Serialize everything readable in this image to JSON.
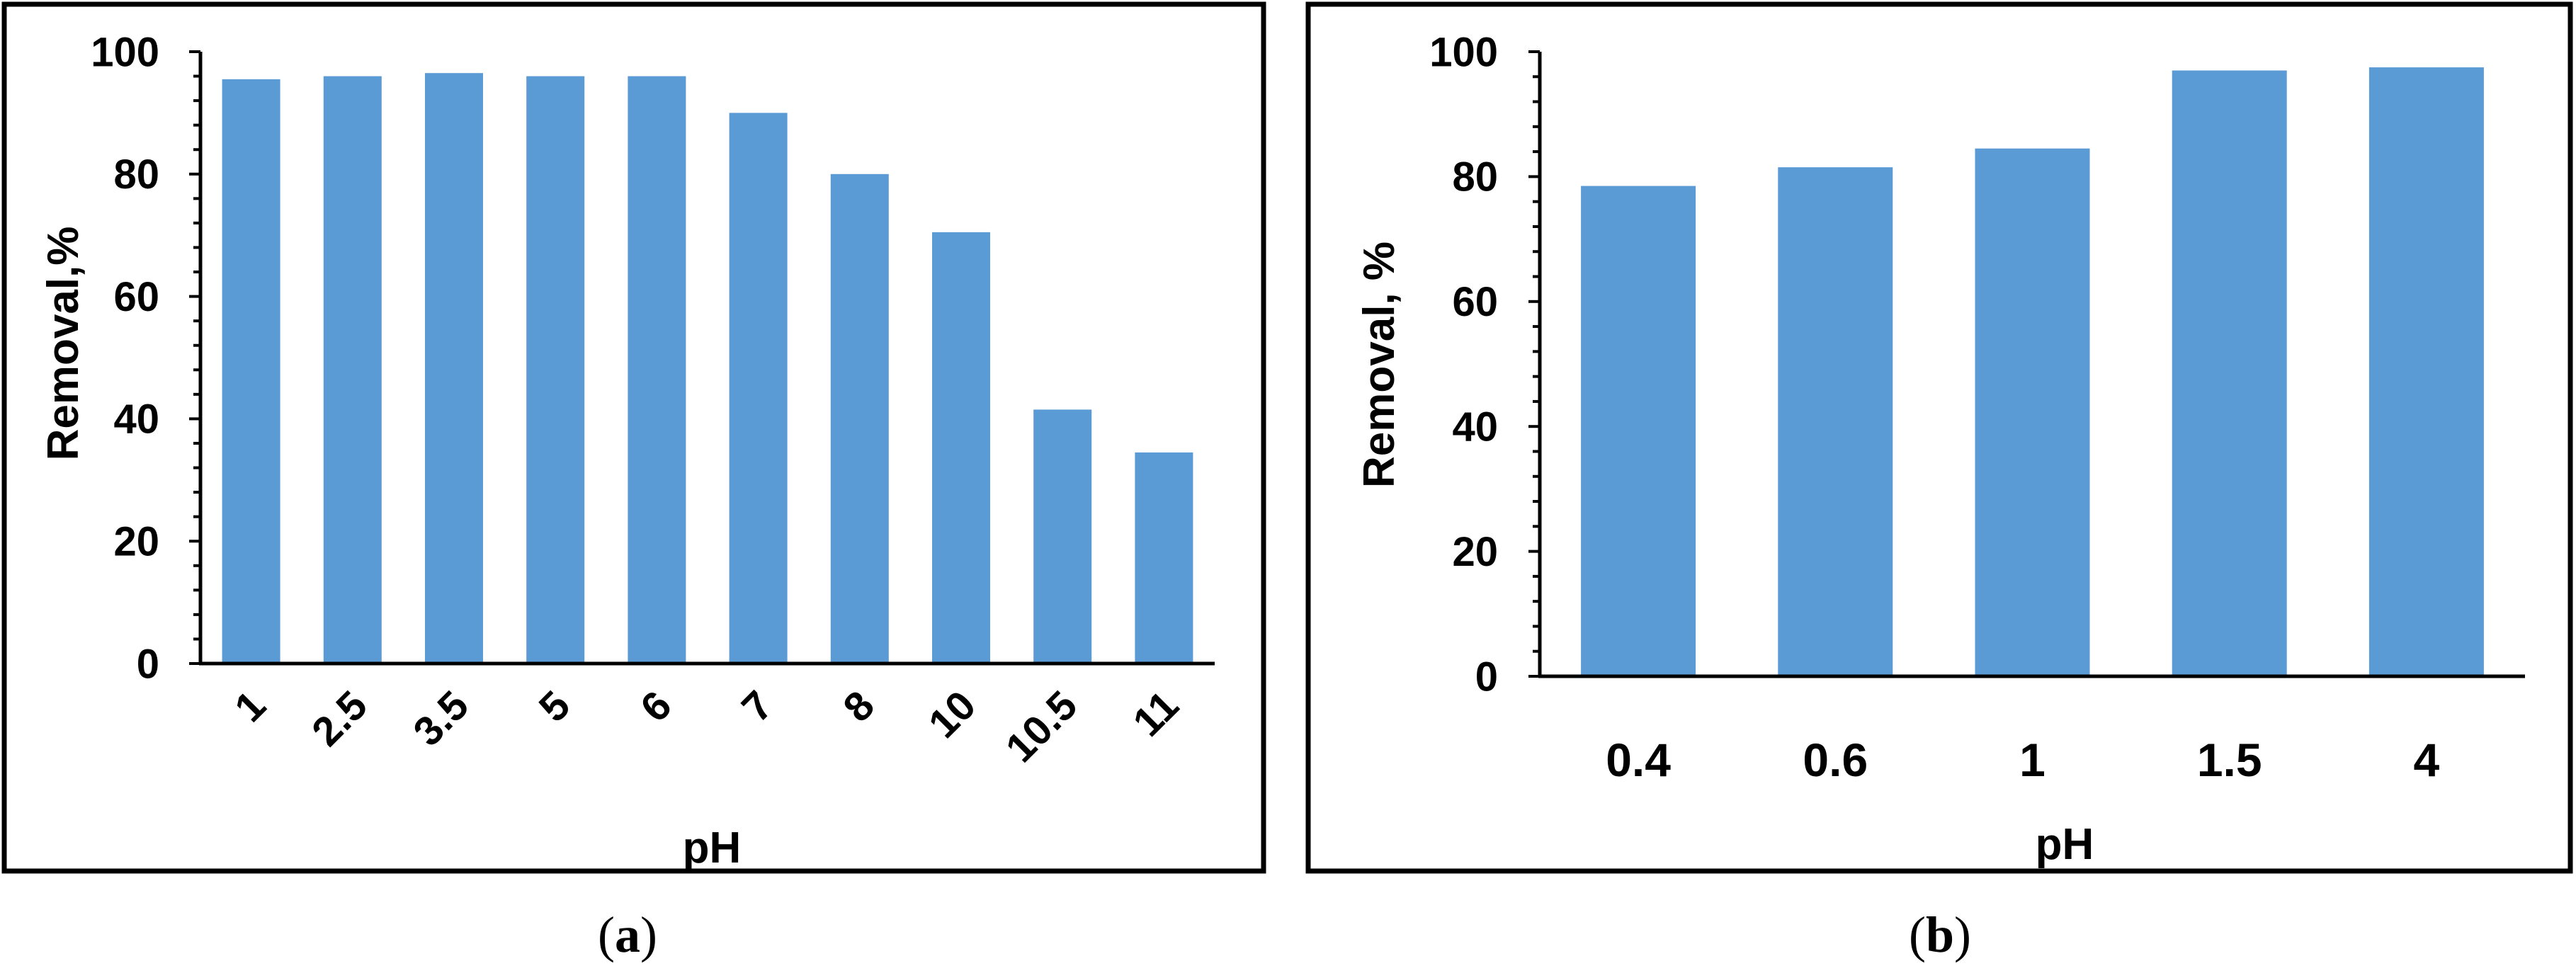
{
  "colors": {
    "bar": "#5B9BD5",
    "axis": "#000000",
    "frame": "#000000",
    "background": "#ffffff"
  },
  "chart_data": [
    {
      "type": "bar",
      "panel": "a",
      "caption": {
        "open": "(",
        "letter": "a",
        "close": ")"
      },
      "title": "",
      "xlabel": "pH",
      "ylabel": "Removal,%",
      "categories": [
        "1",
        "2.5",
        "3.5",
        "5",
        "6",
        "7",
        "8",
        "10",
        "10.5",
        "11"
      ],
      "values": [
        95.5,
        96,
        96.5,
        96,
        96,
        90,
        80,
        70.5,
        41.5,
        34.5
      ],
      "ylim": [
        0,
        100
      ],
      "yticks": [
        "0",
        "20",
        "40",
        "60",
        "80",
        "100"
      ],
      "grid": false,
      "x_tick_rotation": "diagonal"
    },
    {
      "type": "bar",
      "panel": "b",
      "caption": {
        "open": "(",
        "letter": "b",
        "close": ")"
      },
      "title": "",
      "xlabel": "pH",
      "ylabel": "Removal, %",
      "categories": [
        "0.4",
        "0.6",
        "1",
        "1.5",
        "4"
      ],
      "values": [
        78.5,
        81.5,
        84.5,
        97,
        97.5
      ],
      "ylim": [
        0,
        100
      ],
      "yticks": [
        "0",
        "20",
        "40",
        "60",
        "80",
        "100"
      ],
      "grid": false,
      "x_tick_rotation": "none"
    }
  ]
}
